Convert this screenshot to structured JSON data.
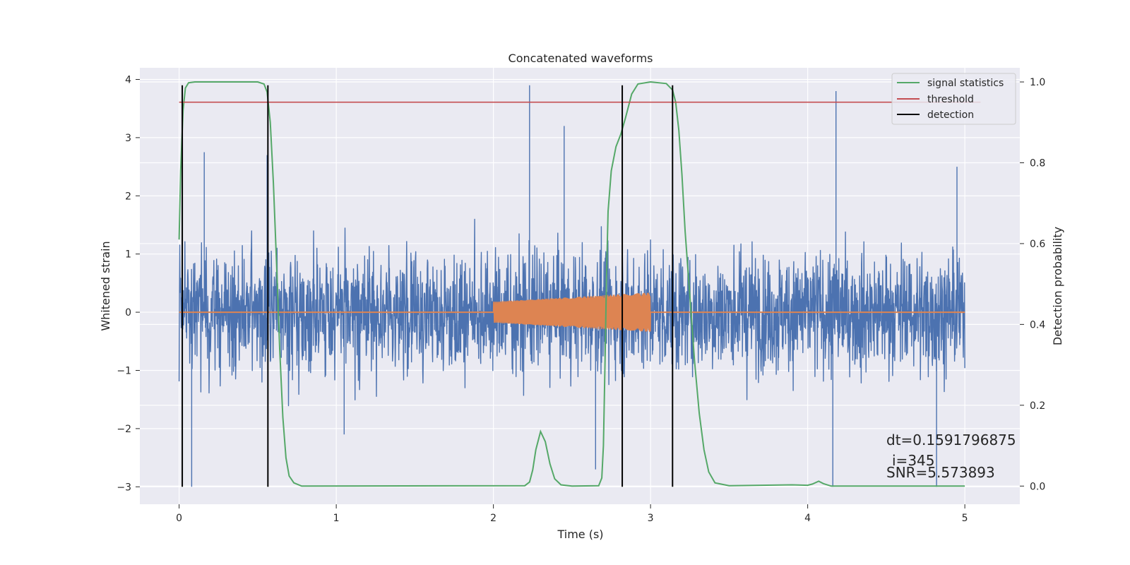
{
  "chart_data": {
    "type": "line",
    "title": "Concatenated waveforms",
    "xlabel": "Time (s)",
    "ylabel": "Whitened strain",
    "y2label": "Detection probability",
    "xlim": [
      -0.25,
      5.35
    ],
    "ylim": [
      -3.3,
      4.2
    ],
    "y2lim": [
      -0.045,
      1.035
    ],
    "xticks": [
      0,
      1,
      2,
      3,
      4,
      5
    ],
    "yticks": [
      -3,
      -2,
      -1,
      0,
      1,
      2,
      3,
      4
    ],
    "y2ticks": [
      0.0,
      0.2,
      0.4,
      0.6,
      0.8,
      1.0
    ],
    "grid": true,
    "legend_position": "upper right",
    "series": [
      {
        "name": "",
        "kind": "noise",
        "axis": "left",
        "color": "#4c72b0",
        "x_range": [
          0,
          5
        ],
        "typical_range": [
          -1.6,
          1.6
        ],
        "extreme_range": [
          -3.0,
          3.9
        ],
        "notable_peaks": [
          [
            0.02,
            2.2
          ],
          [
            0.16,
            2.75
          ],
          [
            0.56,
            2.7
          ],
          [
            2.23,
            3.9
          ],
          [
            2.45,
            3.2
          ],
          [
            2.82,
            2.9
          ],
          [
            4.18,
            3.8
          ],
          [
            4.95,
            2.5
          ],
          [
            0.08,
            -3.0
          ],
          [
            1.05,
            -2.1
          ],
          [
            2.65,
            -2.7
          ],
          [
            4.16,
            -3.0
          ],
          [
            4.82,
            -3.0
          ]
        ]
      },
      {
        "name": "",
        "kind": "injected-chirp",
        "axis": "left",
        "color": "#dd8452",
        "baseline": [
          [
            0,
            0
          ],
          [
            5,
            0
          ]
        ],
        "chirp_start": 2.0,
        "chirp_end": 3.0,
        "amplitude_start": 0.18,
        "amplitude_end": 0.34
      },
      {
        "name": "signal statistics",
        "axis": "right",
        "color": "#55a868",
        "points": [
          [
            0.0,
            0.61
          ],
          [
            0.01,
            0.78
          ],
          [
            0.025,
            0.93
          ],
          [
            0.04,
            0.985
          ],
          [
            0.06,
            0.998
          ],
          [
            0.1,
            1.0
          ],
          [
            0.5,
            1.0
          ],
          [
            0.54,
            0.995
          ],
          [
            0.56,
            0.975
          ],
          [
            0.58,
            0.9
          ],
          [
            0.6,
            0.75
          ],
          [
            0.62,
            0.55
          ],
          [
            0.64,
            0.34
          ],
          [
            0.66,
            0.17
          ],
          [
            0.68,
            0.07
          ],
          [
            0.7,
            0.025
          ],
          [
            0.73,
            0.008
          ],
          [
            0.78,
            0.0
          ],
          [
            2.2,
            0.001
          ],
          [
            2.23,
            0.01
          ],
          [
            2.25,
            0.04
          ],
          [
            2.27,
            0.09
          ],
          [
            2.3,
            0.135
          ],
          [
            2.33,
            0.11
          ],
          [
            2.36,
            0.055
          ],
          [
            2.39,
            0.018
          ],
          [
            2.43,
            0.003
          ],
          [
            2.5,
            0.0
          ],
          [
            2.67,
            0.001
          ],
          [
            2.69,
            0.02
          ],
          [
            2.7,
            0.1
          ],
          [
            2.71,
            0.3
          ],
          [
            2.72,
            0.52
          ],
          [
            2.73,
            0.68
          ],
          [
            2.75,
            0.78
          ],
          [
            2.78,
            0.84
          ],
          [
            2.81,
            0.87
          ],
          [
            2.84,
            0.91
          ],
          [
            2.88,
            0.97
          ],
          [
            2.92,
            0.995
          ],
          [
            3.0,
            1.0
          ],
          [
            3.1,
            0.996
          ],
          [
            3.14,
            0.98
          ],
          [
            3.16,
            0.95
          ],
          [
            3.18,
            0.88
          ],
          [
            3.2,
            0.77
          ],
          [
            3.22,
            0.63
          ],
          [
            3.25,
            0.47
          ],
          [
            3.28,
            0.31
          ],
          [
            3.31,
            0.18
          ],
          [
            3.34,
            0.09
          ],
          [
            3.37,
            0.035
          ],
          [
            3.41,
            0.008
          ],
          [
            3.5,
            0.001
          ],
          [
            3.9,
            0.003
          ],
          [
            4.0,
            0.002
          ],
          [
            4.03,
            0.005
          ],
          [
            4.07,
            0.012
          ],
          [
            4.1,
            0.006
          ],
          [
            4.15,
            0.0
          ],
          [
            5.0,
            0.0
          ]
        ]
      },
      {
        "name": "threshold",
        "axis": "right",
        "color": "#c44e52",
        "points": [
          [
            0.0,
            0.95
          ],
          [
            5.1,
            0.95
          ]
        ]
      },
      {
        "name": "detection",
        "axis": "left",
        "color": "#000000",
        "vlines": [
          0.02,
          0.565,
          2.82,
          3.14
        ],
        "ymin": -3.0,
        "ymax": 3.9
      }
    ],
    "annotations": [
      "dt=0.1591796875",
      "i=345",
      "SNR=5.573893"
    ]
  }
}
